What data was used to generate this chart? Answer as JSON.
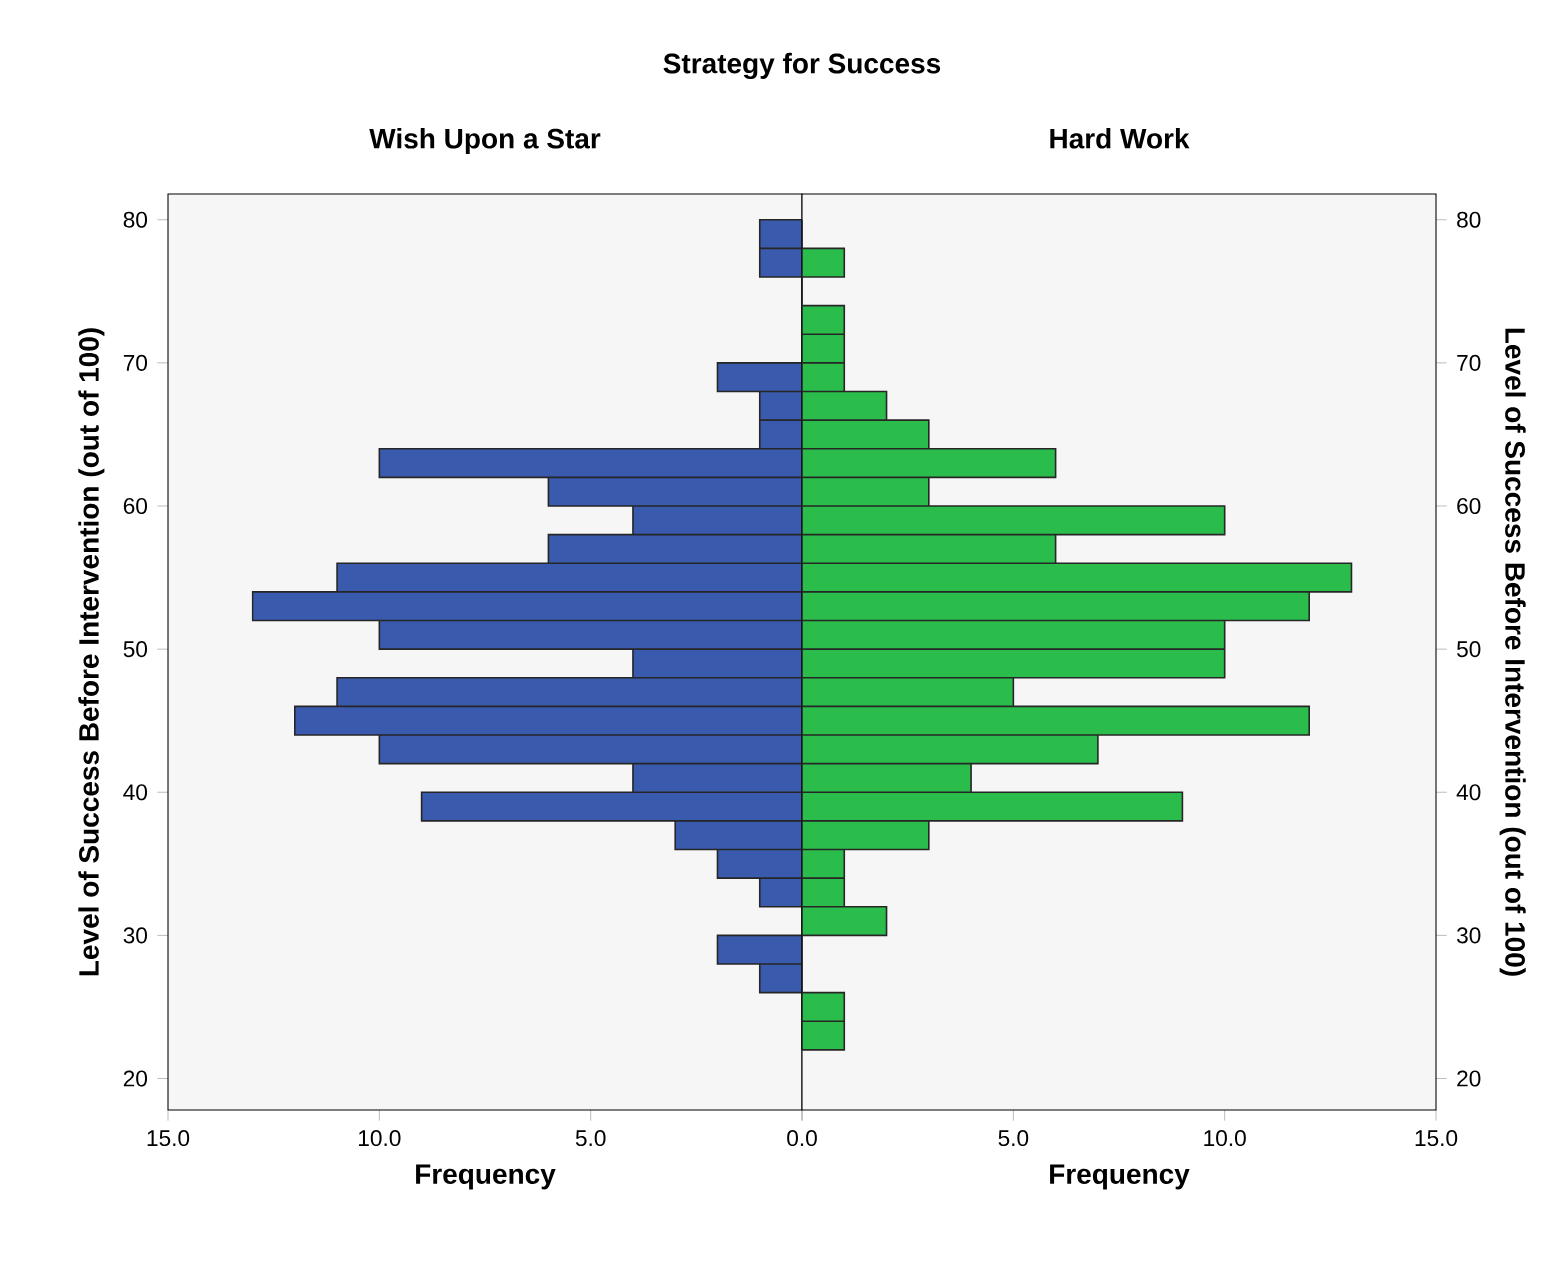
{
  "chart_data": [
    {
      "type": "histogram",
      "orientation": "horizontal",
      "title": "Strategy for Success",
      "subtitle": "Wish Upon a Star",
      "xlabel": "Frequency",
      "ylabel": "Level of Success Before Intervention (out of 100)",
      "color": "#3a5bad",
      "bins": [
        22,
        24,
        26,
        28,
        30,
        32,
        34,
        36,
        38,
        40,
        42,
        44,
        46,
        48,
        50,
        52,
        54,
        56,
        58,
        60,
        62,
        64,
        66,
        68,
        70,
        72,
        74,
        76,
        78,
        80
      ],
      "values": [
        0,
        0,
        1,
        2,
        0,
        1,
        2,
        3,
        9,
        4,
        10,
        12,
        11,
        4,
        10,
        13,
        11,
        6,
        4,
        6,
        10,
        1,
        1,
        2,
        0,
        0,
        0,
        1,
        1
      ],
      "xlim": [
        15,
        0
      ],
      "xticks": [
        {
          "value": 15,
          "label": "15.0"
        },
        {
          "value": 10,
          "label": "10.0"
        },
        {
          "value": 5,
          "label": "5.0"
        },
        {
          "value": 0,
          "label": "0.0"
        }
      ],
      "ylim": [
        17.8,
        81.8
      ],
      "yticks": [
        20,
        30,
        40,
        50,
        60,
        70,
        80
      ]
    },
    {
      "type": "histogram",
      "orientation": "horizontal",
      "subtitle": "Hard Work",
      "xlabel": "Frequency",
      "ylabel": "Level of Success Before Intervention (out of 100)",
      "color": "#2bbd4b",
      "bins": [
        22,
        24,
        26,
        28,
        30,
        32,
        34,
        36,
        38,
        40,
        42,
        44,
        46,
        48,
        50,
        52,
        54,
        56,
        58,
        60,
        62,
        64,
        66,
        68,
        70,
        72,
        74,
        76,
        78,
        80
      ],
      "values": [
        1,
        1,
        0,
        0,
        2,
        1,
        1,
        3,
        9,
        4,
        7,
        12,
        5,
        10,
        10,
        12,
        13,
        6,
        10,
        3,
        6,
        3,
        2,
        1,
        1,
        1,
        0,
        1,
        0
      ],
      "xlim": [
        0,
        15
      ],
      "xticks": [
        {
          "value": 0,
          "label": null
        },
        {
          "value": 5,
          "label": "5.0"
        },
        {
          "value": 10,
          "label": "10.0"
        },
        {
          "value": 15,
          "label": "15.0"
        }
      ],
      "ylim": [
        17.8,
        81.8
      ],
      "yticks": [
        20,
        30,
        40,
        50,
        60,
        70,
        80
      ]
    }
  ]
}
